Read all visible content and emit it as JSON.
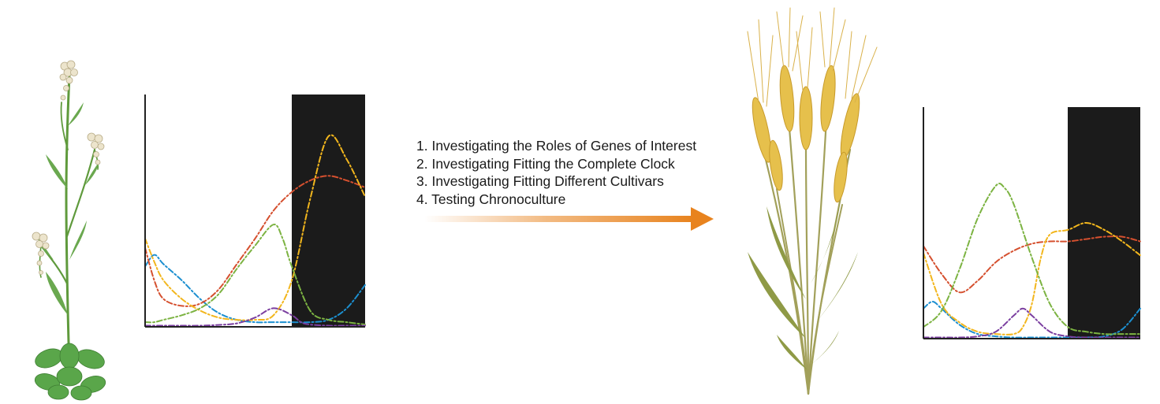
{
  "steps": [
    "1. Investigating the Roles of Genes of Interest",
    "2. Investigating Fitting the Complete Clock",
    "3. Investigating Fitting Different Cultivars",
    "4. Testing Chronoculture"
  ],
  "colors": {
    "night_shading": "#1b1b1b",
    "arrow": "#e8831e",
    "curve_orange": "#f2b61d",
    "curve_red": "#d5502f",
    "curve_green": "#7cb342",
    "curve_blue": "#1c8fd0",
    "curve_purple": "#7b3fa0",
    "stem_green": "#5f9a3c",
    "leaf_green": "#5aa64a",
    "flower_cream": "#ece4cc",
    "wheat_gold": "#e6c04c",
    "wheat_stem": "#a2a05a"
  },
  "icons": {
    "left_plant": "arabidopsis-plant-icon",
    "right_plant": "wheat-plant-icon"
  },
  "chart_data": [
    {
      "type": "line",
      "title": "",
      "xlabel": "",
      "ylabel": "",
      "xlim": [
        0,
        24
      ],
      "ylim": [
        0,
        1
      ],
      "night_shading": [
        16,
        24
      ],
      "grid": false,
      "series": [
        {
          "color": "#1c8fd0",
          "x": [
            0,
            1,
            2,
            4,
            6,
            8,
            10,
            12,
            14,
            16,
            18,
            20,
            22,
            24
          ],
          "values": [
            0.26,
            0.31,
            0.27,
            0.2,
            0.12,
            0.06,
            0.03,
            0.02,
            0.02,
            0.02,
            0.02,
            0.03,
            0.08,
            0.18
          ]
        },
        {
          "color": "#d5502f",
          "x": [
            0,
            1,
            2,
            4,
            6,
            8,
            10,
            12,
            14,
            16,
            18,
            20,
            22,
            24
          ],
          "values": [
            0.34,
            0.2,
            0.12,
            0.09,
            0.1,
            0.16,
            0.27,
            0.38,
            0.5,
            0.58,
            0.63,
            0.65,
            0.63,
            0.6
          ]
        },
        {
          "color": "#f2b61d",
          "x": [
            0,
            1,
            2,
            4,
            6,
            8,
            10,
            12,
            14,
            16,
            18,
            20,
            22,
            24
          ],
          "values": [
            0.38,
            0.28,
            0.2,
            0.12,
            0.07,
            0.04,
            0.03,
            0.03,
            0.05,
            0.2,
            0.55,
            0.82,
            0.72,
            0.56
          ]
        },
        {
          "color": "#7cb342",
          "x": [
            0,
            1,
            2,
            4,
            6,
            8,
            10,
            12,
            14,
            15,
            16,
            18,
            20,
            22,
            24
          ],
          "values": [
            0.02,
            0.02,
            0.03,
            0.05,
            0.08,
            0.14,
            0.25,
            0.35,
            0.44,
            0.38,
            0.26,
            0.07,
            0.03,
            0.02,
            0.01
          ]
        },
        {
          "color": "#7b3fa0",
          "x": [
            0,
            2,
            4,
            6,
            8,
            10,
            12,
            14,
            16,
            17,
            18,
            20,
            22,
            24
          ],
          "values": [
            0.005,
            0.005,
            0.005,
            0.005,
            0.008,
            0.015,
            0.04,
            0.08,
            0.05,
            0.02,
            0.01,
            0.005,
            0.005,
            0.005
          ]
        }
      ]
    },
    {
      "type": "line",
      "title": "",
      "xlabel": "",
      "ylabel": "",
      "xlim": [
        0,
        24
      ],
      "ylim": [
        0,
        1
      ],
      "night_shading": [
        16,
        24
      ],
      "grid": false,
      "series": [
        {
          "color": "#1c8fd0",
          "x": [
            0,
            1,
            2,
            4,
            6,
            8,
            10,
            12,
            14,
            16,
            18,
            20,
            22,
            24
          ],
          "values": [
            0.13,
            0.16,
            0.13,
            0.06,
            0.02,
            0.01,
            0.005,
            0.005,
            0.005,
            0.005,
            0.005,
            0.01,
            0.04,
            0.13
          ]
        },
        {
          "color": "#d5502f",
          "x": [
            0,
            2,
            4,
            6,
            8,
            10,
            12,
            14,
            16,
            18,
            20,
            22,
            24
          ],
          "values": [
            0.4,
            0.28,
            0.2,
            0.25,
            0.33,
            0.38,
            0.41,
            0.42,
            0.42,
            0.43,
            0.44,
            0.44,
            0.42
          ]
        },
        {
          "color": "#f2b61d",
          "x": [
            0,
            2,
            4,
            6,
            8,
            10,
            11,
            12,
            13,
            14,
            16,
            18,
            20,
            22,
            24
          ],
          "values": [
            0.37,
            0.15,
            0.07,
            0.03,
            0.02,
            0.02,
            0.05,
            0.15,
            0.35,
            0.45,
            0.47,
            0.5,
            0.47,
            0.42,
            0.36
          ]
        },
        {
          "color": "#7cb342",
          "x": [
            0,
            2,
            4,
            6,
            8,
            9,
            10,
            12,
            14,
            16,
            18,
            20,
            22,
            24
          ],
          "values": [
            0.05,
            0.12,
            0.3,
            0.52,
            0.66,
            0.65,
            0.58,
            0.35,
            0.15,
            0.05,
            0.03,
            0.02,
            0.02,
            0.02
          ]
        },
        {
          "color": "#7b3fa0",
          "x": [
            0,
            2,
            4,
            6,
            8,
            10,
            11,
            12,
            14,
            16,
            18,
            20,
            22,
            24
          ],
          "values": [
            0.005,
            0.005,
            0.005,
            0.01,
            0.03,
            0.1,
            0.13,
            0.1,
            0.03,
            0.01,
            0.005,
            0.005,
            0.005,
            0.005
          ]
        }
      ]
    }
  ]
}
